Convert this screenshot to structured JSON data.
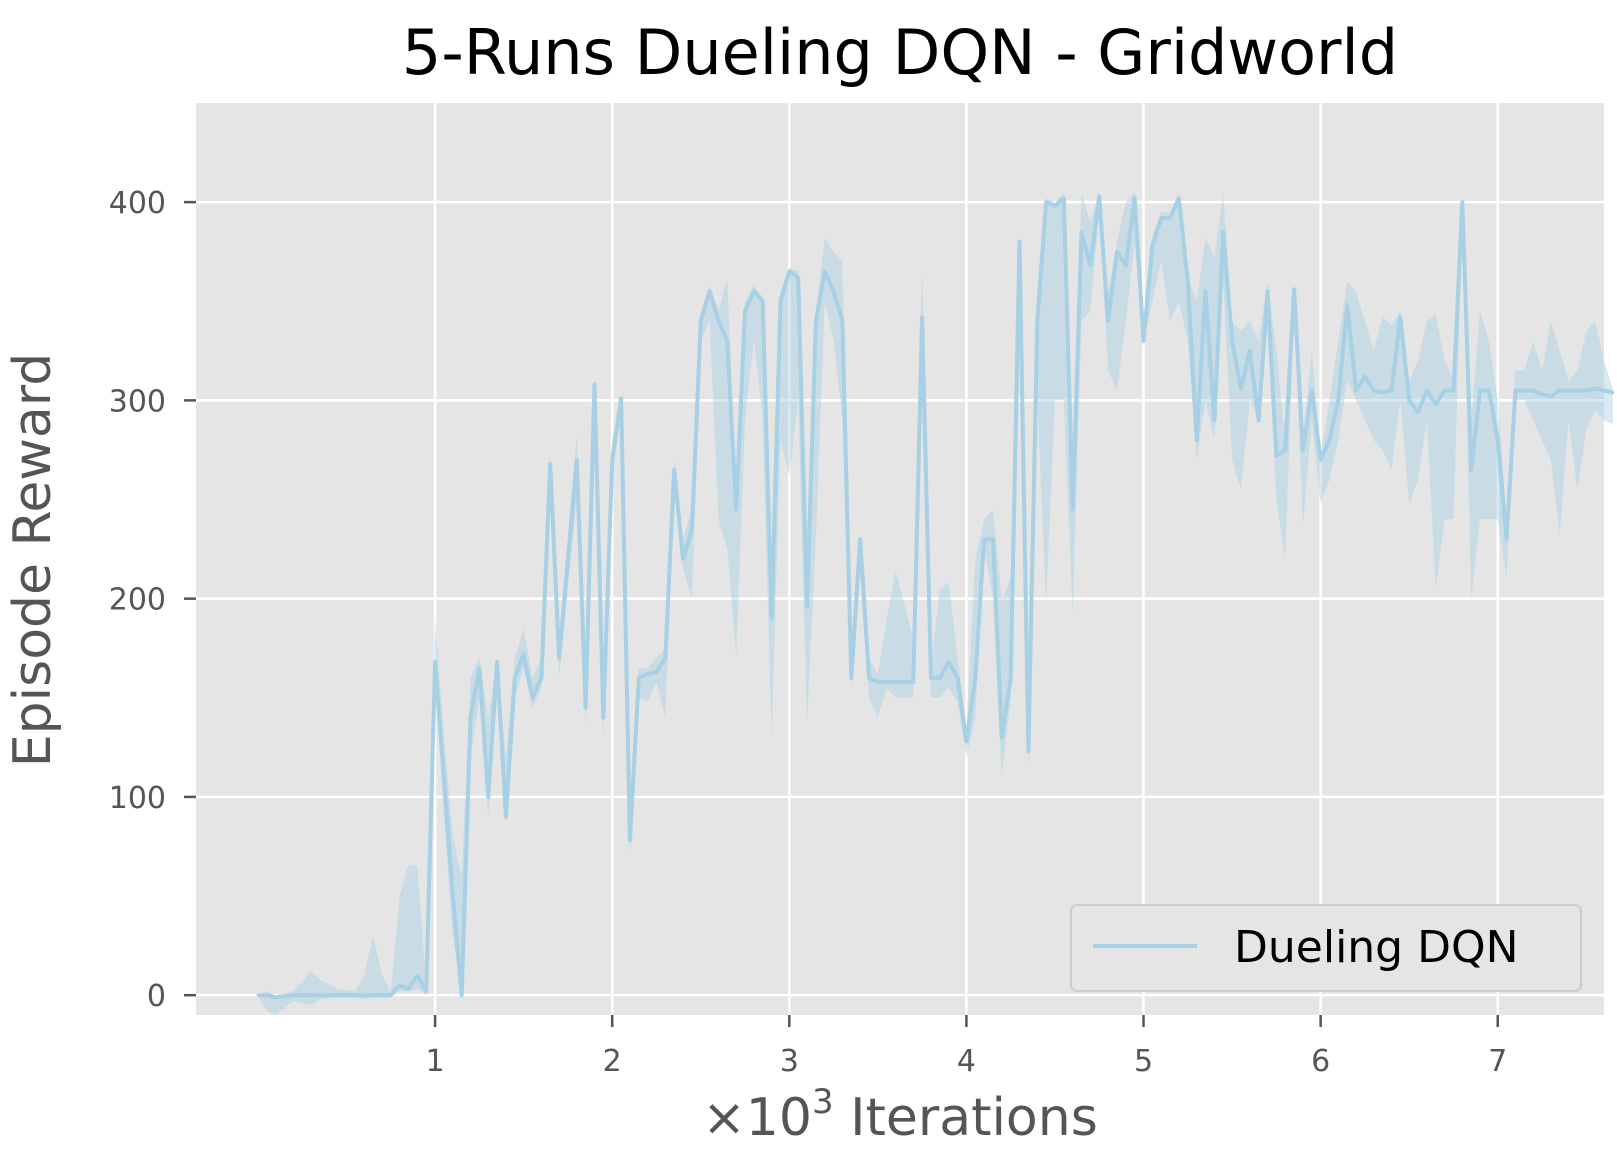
{
  "chart_data": {
    "type": "line",
    "title": "5-Runs Dueling DQN - Gridworld",
    "xlabel_prefix": "×10",
    "xlabel_exp": "3",
    "xlabel_suffix": " Iterations",
    "ylabel": "Episode Reward",
    "xlim": [
      -0.35,
      7.6
    ],
    "ylim": [
      -10,
      450
    ],
    "xticks": [
      1,
      2,
      3,
      4,
      5,
      6,
      7
    ],
    "yticks": [
      0,
      100,
      200,
      300,
      400
    ],
    "grid": true,
    "background": "#e5e5e5",
    "grid_color": "#ffffff",
    "legend_position": "lower-right",
    "series": [
      {
        "name": "Dueling DQN",
        "color": "#a7d0e4",
        "band_color": "#a7d0e4",
        "points": [
          [
            0.0,
            0,
            0,
            0
          ],
          [
            0.05,
            0,
            -8,
            2
          ],
          [
            0.1,
            -1,
            -10,
            0
          ],
          [
            0.2,
            0,
            -3,
            2
          ],
          [
            0.3,
            0,
            -5,
            12
          ],
          [
            0.35,
            0,
            -2,
            8
          ],
          [
            0.45,
            0,
            -1,
            3
          ],
          [
            0.55,
            0,
            -1,
            2
          ],
          [
            0.6,
            0,
            -2,
            10
          ],
          [
            0.65,
            0,
            -1,
            30
          ],
          [
            0.7,
            0,
            -1,
            10
          ],
          [
            0.75,
            0,
            -1,
            2
          ],
          [
            0.8,
            5,
            2,
            50
          ],
          [
            0.85,
            3,
            2,
            66
          ],
          [
            0.9,
            10,
            3,
            65
          ],
          [
            0.95,
            2,
            0,
            5
          ],
          [
            1.0,
            168,
            160,
            190
          ],
          [
            1.05,
            110,
            90,
            130
          ],
          [
            1.1,
            50,
            30,
            80
          ],
          [
            1.15,
            0,
            0,
            60
          ],
          [
            1.2,
            140,
            120,
            160
          ],
          [
            1.25,
            165,
            150,
            170
          ],
          [
            1.3,
            100,
            90,
            140
          ],
          [
            1.35,
            168,
            150,
            170
          ],
          [
            1.4,
            90,
            88,
            120
          ],
          [
            1.45,
            160,
            150,
            170
          ],
          [
            1.5,
            172,
            165,
            185
          ],
          [
            1.55,
            150,
            145,
            160
          ],
          [
            1.6,
            160,
            155,
            170
          ],
          [
            1.65,
            268,
            260,
            272
          ],
          [
            1.7,
            170,
            160,
            180
          ],
          [
            1.8,
            270,
            250,
            283
          ],
          [
            1.85,
            145,
            135,
            150
          ],
          [
            1.9,
            308,
            300,
            311
          ],
          [
            1.95,
            140,
            128,
            150
          ],
          [
            2.0,
            270,
            260,
            280
          ],
          [
            2.05,
            301,
            295,
            302
          ],
          [
            2.1,
            78,
            70,
            85
          ],
          [
            2.15,
            160,
            150,
            165
          ],
          [
            2.2,
            162,
            148,
            165
          ],
          [
            2.25,
            163,
            158,
            170
          ],
          [
            2.3,
            170,
            140,
            175
          ],
          [
            2.35,
            265,
            255,
            271
          ],
          [
            2.4,
            220,
            215,
            230
          ],
          [
            2.45,
            235,
            200,
            245
          ],
          [
            2.5,
            340,
            330,
            345
          ],
          [
            2.55,
            355,
            340,
            358
          ],
          [
            2.6,
            340,
            240,
            345
          ],
          [
            2.65,
            330,
            225,
            362
          ],
          [
            2.7,
            245,
            170,
            250
          ],
          [
            2.75,
            345,
            290,
            350
          ],
          [
            2.8,
            355,
            330,
            358
          ],
          [
            2.85,
            350,
            290,
            352
          ],
          [
            2.9,
            190,
            130,
            200
          ],
          [
            2.95,
            350,
            280,
            355
          ],
          [
            3.0,
            365,
            262,
            367
          ],
          [
            3.05,
            362,
            300,
            365
          ],
          [
            3.1,
            196,
            137,
            200
          ],
          [
            3.15,
            340,
            230,
            345
          ],
          [
            3.2,
            365,
            350,
            382
          ],
          [
            3.25,
            355,
            330,
            375
          ],
          [
            3.3,
            340,
            290,
            370
          ],
          [
            3.35,
            160,
            155,
            165
          ],
          [
            3.4,
            230,
            220,
            232
          ],
          [
            3.45,
            160,
            150,
            170
          ],
          [
            3.5,
            158,
            140,
            162
          ],
          [
            3.55,
            158,
            155,
            190
          ],
          [
            3.6,
            158,
            150,
            214
          ],
          [
            3.7,
            158,
            150,
            180
          ],
          [
            3.75,
            342,
            340,
            368
          ],
          [
            3.8,
            160,
            150,
            165
          ],
          [
            3.85,
            160,
            150,
            205
          ],
          [
            3.9,
            168,
            155,
            208
          ],
          [
            3.95,
            160,
            148,
            170
          ],
          [
            4.0,
            128,
            120,
            135
          ],
          [
            4.05,
            160,
            140,
            220
          ],
          [
            4.1,
            230,
            225,
            240
          ],
          [
            4.15,
            230,
            200,
            245
          ],
          [
            4.2,
            130,
            110,
            200
          ],
          [
            4.25,
            160,
            150,
            210
          ],
          [
            4.3,
            380,
            374,
            383
          ],
          [
            4.35,
            123,
            113,
            130
          ],
          [
            4.4,
            340,
            300,
            350
          ],
          [
            4.45,
            400,
            197,
            402
          ],
          [
            4.5,
            398,
            300,
            400
          ],
          [
            4.55,
            402,
            300,
            405
          ],
          [
            4.6,
            245,
            192,
            250
          ],
          [
            4.65,
            385,
            340,
            405
          ],
          [
            4.7,
            368,
            345,
            390
          ],
          [
            4.75,
            403,
            395,
            405
          ],
          [
            4.8,
            340,
            315,
            355
          ],
          [
            4.85,
            375,
            305,
            380
          ],
          [
            4.9,
            368,
            340,
            400
          ],
          [
            4.95,
            402,
            380,
            405
          ],
          [
            5.0,
            330,
            328,
            337
          ],
          [
            5.05,
            378,
            350,
            383
          ],
          [
            5.1,
            392,
            370,
            395
          ],
          [
            5.15,
            392,
            340,
            395
          ],
          [
            5.2,
            402,
            350,
            404
          ],
          [
            5.25,
            360,
            330,
            362
          ],
          [
            5.3,
            280,
            270,
            350
          ],
          [
            5.35,
            355,
            300,
            382
          ],
          [
            5.4,
            290,
            280,
            372
          ],
          [
            5.45,
            385,
            360,
            404
          ],
          [
            5.5,
            330,
            270,
            340
          ],
          [
            5.55,
            306,
            255,
            335
          ],
          [
            5.6,
            325,
            300,
            340
          ],
          [
            5.65,
            290,
            290,
            330
          ],
          [
            5.7,
            355,
            340,
            360
          ],
          [
            5.75,
            272,
            250,
            325
          ],
          [
            5.8,
            275,
            220,
            280
          ],
          [
            5.85,
            356,
            345,
            358
          ],
          [
            5.9,
            275,
            237,
            282
          ],
          [
            5.95,
            305,
            290,
            325
          ],
          [
            6.0,
            270,
            248,
            272
          ],
          [
            6.05,
            280,
            260,
            300
          ],
          [
            6.1,
            300,
            280,
            330
          ],
          [
            6.15,
            348,
            310,
            360
          ],
          [
            6.2,
            305,
            300,
            355
          ],
          [
            6.25,
            312,
            290,
            340
          ],
          [
            6.3,
            305,
            280,
            325
          ],
          [
            6.35,
            304,
            275,
            342
          ],
          [
            6.4,
            305,
            265,
            338
          ],
          [
            6.45,
            342,
            300,
            345
          ],
          [
            6.5,
            300,
            248,
            310
          ],
          [
            6.55,
            294,
            260,
            320
          ],
          [
            6.6,
            305,
            290,
            340
          ],
          [
            6.65,
            298,
            205,
            343
          ],
          [
            6.7,
            305,
            240,
            320
          ],
          [
            6.75,
            305,
            240,
            310
          ],
          [
            6.8,
            400,
            390,
            402
          ],
          [
            6.85,
            265,
            200,
            290
          ],
          [
            6.9,
            305,
            240,
            345
          ],
          [
            6.95,
            305,
            240,
            330
          ],
          [
            7.0,
            280,
            240,
            300
          ],
          [
            7.05,
            230,
            210,
            240
          ],
          [
            7.1,
            305,
            300,
            315
          ],
          [
            7.15,
            305,
            300,
            315
          ],
          [
            7.2,
            305,
            290,
            330
          ],
          [
            7.25,
            303,
            280,
            315
          ],
          [
            7.3,
            302,
            270,
            340
          ],
          [
            7.35,
            305,
            232,
            325
          ],
          [
            7.4,
            305,
            290,
            310
          ],
          [
            7.45,
            305,
            255,
            315
          ],
          [
            7.5,
            305,
            285,
            335
          ],
          [
            7.55,
            306,
            295,
            340
          ],
          [
            7.6,
            305,
            290,
            320
          ],
          [
            7.65,
            304,
            288,
            306
          ]
        ]
      }
    ]
  }
}
